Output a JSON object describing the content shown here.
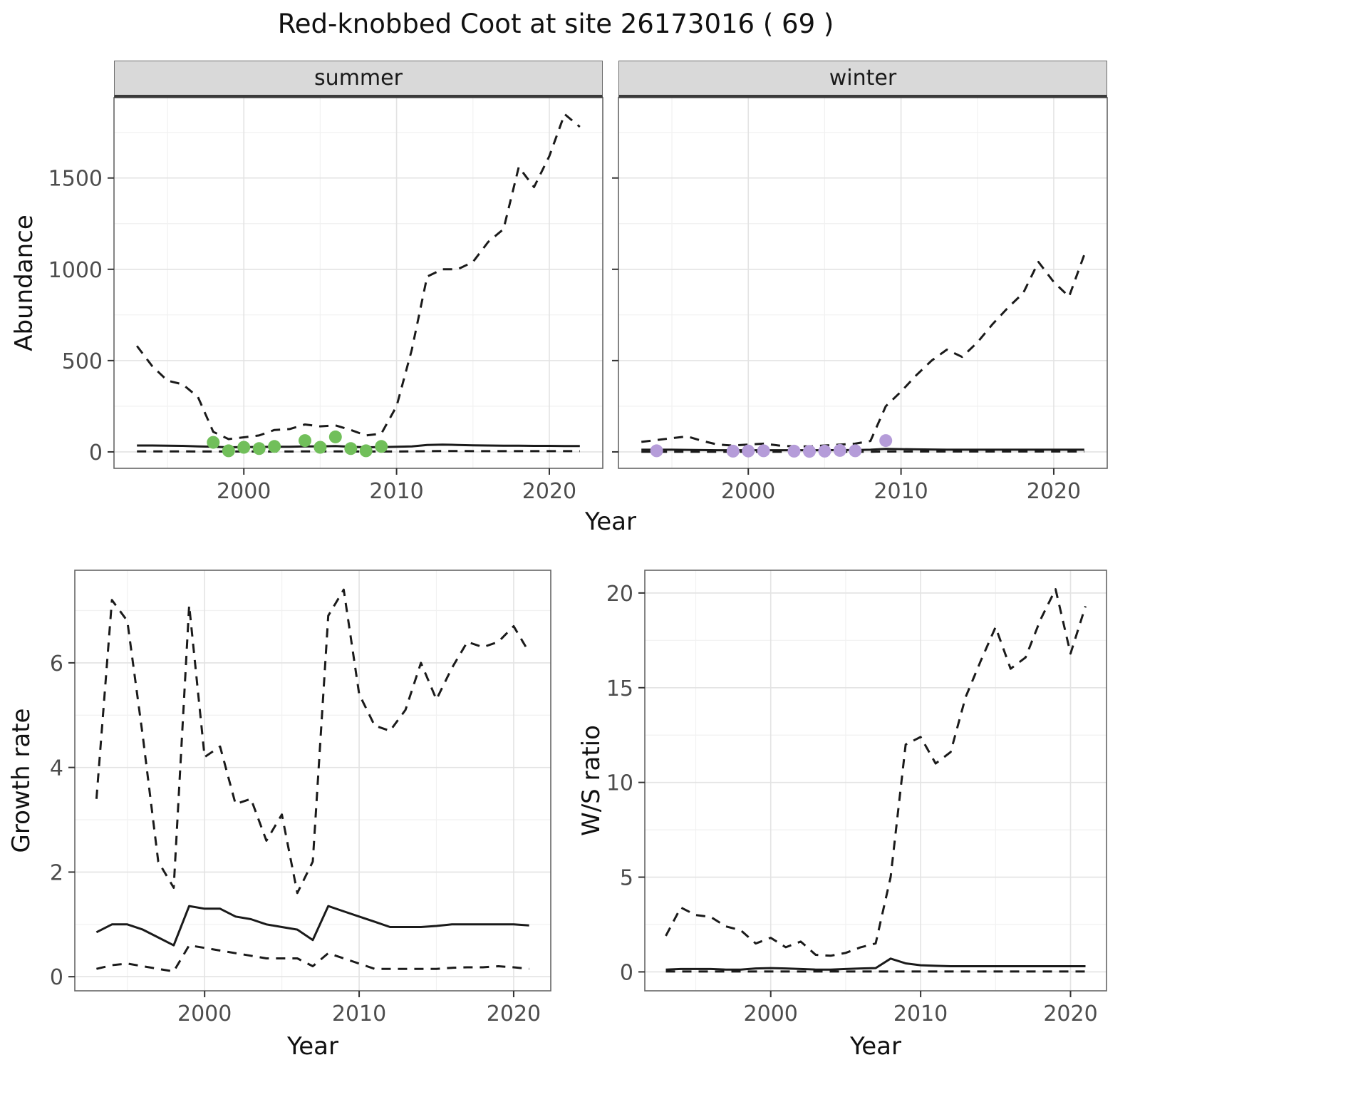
{
  "title": "Red-knobbed Coot at site 26173016 ( 69 )",
  "axes": {
    "abundance_label": "Abundance",
    "year_label": "Year",
    "growth_label": "Growth rate",
    "ws_label": "W/S ratio"
  },
  "style": {
    "line": "#1a1a1a",
    "grid_major": "#e3e3e3",
    "grid_minor": "#f1f1f1",
    "panel_border": "#666666",
    "tick_color": "#333333",
    "tick_text": "#4d4d4d",
    "strip_bg": "#d9d9d9",
    "summer_point": "#71bf5a",
    "winter_point": "#b59cd9"
  },
  "chart_data": [
    {
      "id": "abundance-summer",
      "type": "line",
      "facet_label": "summer",
      "xlabel": "Year",
      "ylabel": "Abundance",
      "xlim": [
        1991.5,
        2023.5
      ],
      "ylim": [
        -90,
        1940
      ],
      "xticks": [
        2000,
        2010,
        2020
      ],
      "xminor": [
        1995,
        2005,
        2015
      ],
      "yticks": [
        0,
        500,
        1000,
        1500
      ],
      "yminor": [
        250,
        750,
        1250,
        1750
      ],
      "x": [
        1993,
        1994,
        1995,
        1996,
        1997,
        1998,
        1999,
        2000,
        2001,
        2002,
        2003,
        2004,
        2005,
        2006,
        2007,
        2008,
        2009,
        2010,
        2011,
        2012,
        2013,
        2014,
        2015,
        2016,
        2017,
        2018,
        2019,
        2020,
        2021,
        2022
      ],
      "series": [
        {
          "name": "upper_ci",
          "style": "dashed",
          "values": [
            580,
            470,
            390,
            370,
            300,
            110,
            70,
            80,
            90,
            120,
            125,
            150,
            140,
            145,
            120,
            90,
            100,
            250,
            560,
            960,
            1000,
            1000,
            1040,
            1150,
            1220,
            1560,
            1450,
            1620,
            1850,
            1780
          ]
        },
        {
          "name": "median",
          "style": "solid",
          "values": [
            35,
            35,
            34,
            33,
            30,
            28,
            25,
            26,
            27,
            28,
            28,
            30,
            30,
            32,
            28,
            25,
            26,
            28,
            30,
            38,
            40,
            38,
            36,
            35,
            34,
            34,
            33,
            33,
            32,
            32
          ]
        },
        {
          "name": "lower_ci",
          "style": "dashed",
          "values": [
            3,
            3,
            3,
            3,
            2,
            2,
            2,
            2,
            2,
            2,
            2,
            3,
            3,
            3,
            2,
            2,
            2,
            2,
            3,
            4,
            5,
            5,
            4,
            4,
            4,
            4,
            4,
            4,
            4,
            4
          ]
        }
      ],
      "points": {
        "name": "observed_counts",
        "color": "#71bf5a",
        "x": [
          1998,
          1999,
          2000,
          2001,
          2002,
          2004,
          2005,
          2006,
          2007,
          2008,
          2009
        ],
        "y": [
          52,
          6,
          25,
          18,
          30,
          62,
          25,
          82,
          18,
          6,
          30
        ]
      }
    },
    {
      "id": "abundance-winter",
      "type": "line",
      "facet_label": "winter",
      "xlabel": "Year",
      "ylabel": "Abundance",
      "xlim": [
        1991.5,
        2023.5
      ],
      "ylim": [
        -90,
        1940
      ],
      "xticks": [
        2000,
        2010,
        2020
      ],
      "xminor": [
        1995,
        2005,
        2015
      ],
      "yticks": [
        0,
        500,
        1000,
        1500
      ],
      "yminor": [
        250,
        750,
        1250,
        1750
      ],
      "x": [
        1993,
        1994,
        1995,
        1996,
        1997,
        1998,
        1999,
        2000,
        2001,
        2002,
        2003,
        2004,
        2005,
        2006,
        2007,
        2008,
        2009,
        2010,
        2011,
        2012,
        2013,
        2014,
        2015,
        2016,
        2017,
        2018,
        2019,
        2020,
        2021,
        2022
      ],
      "series": [
        {
          "name": "upper_ci",
          "style": "dashed",
          "values": [
            55,
            65,
            75,
            85,
            60,
            40,
            35,
            40,
            45,
            35,
            30,
            30,
            35,
            40,
            45,
            60,
            250,
            330,
            420,
            500,
            560,
            520,
            600,
            700,
            790,
            870,
            1040,
            930,
            850,
            1080
          ]
        },
        {
          "name": "median",
          "style": "solid",
          "values": [
            12,
            12,
            12,
            11,
            10,
            9,
            9,
            9,
            9,
            9,
            9,
            9,
            9,
            10,
            10,
            12,
            16,
            15,
            14,
            13,
            12,
            12,
            12,
            12,
            12,
            12,
            12,
            12,
            12,
            12
          ]
        },
        {
          "name": "lower_ci",
          "style": "dashed",
          "values": [
            1,
            1,
            1,
            1,
            1,
            1,
            1,
            1,
            1,
            1,
            1,
            1,
            1,
            1,
            1,
            1,
            2,
            2,
            2,
            2,
            2,
            2,
            2,
            2,
            2,
            2,
            2,
            2,
            2,
            2
          ]
        }
      ],
      "points": {
        "name": "observed_counts",
        "color": "#b59cd9",
        "x": [
          1994,
          1999,
          2000,
          2001,
          2003,
          2004,
          2005,
          2006,
          2007,
          2009
        ],
        "y": [
          6,
          4,
          5,
          6,
          4,
          3,
          4,
          8,
          6,
          62
        ]
      }
    },
    {
      "id": "growth-rate",
      "type": "line",
      "facet_label": "",
      "xlabel": "Year",
      "ylabel": "Growth rate",
      "xlim": [
        1991.6,
        2022.4
      ],
      "ylim": [
        -0.27,
        7.77
      ],
      "xticks": [
        2000,
        2010,
        2020
      ],
      "xminor": [
        1995,
        2005,
        2015
      ],
      "yticks": [
        0,
        2,
        4,
        6
      ],
      "yminor": [
        1,
        3,
        5,
        7
      ],
      "x": [
        1993,
        1994,
        1995,
        1996,
        1997,
        1998,
        1999,
        2000,
        2001,
        2002,
        2003,
        2004,
        2005,
        2006,
        2007,
        2008,
        2009,
        2010,
        2011,
        2012,
        2013,
        2014,
        2015,
        2016,
        2017,
        2018,
        2019,
        2020,
        2021
      ],
      "series": [
        {
          "name": "upper_ci",
          "style": "dashed",
          "values": [
            3.4,
            7.2,
            6.8,
            4.6,
            2.2,
            1.7,
            7.1,
            4.2,
            4.4,
            3.3,
            3.4,
            2.6,
            3.1,
            1.6,
            2.2,
            6.9,
            7.4,
            5.4,
            4.8,
            4.7,
            5.1,
            6.0,
            5.3,
            5.9,
            6.4,
            6.3,
            6.4,
            6.7,
            6.2
          ]
        },
        {
          "name": "median",
          "style": "solid",
          "values": [
            0.85,
            1.0,
            1.0,
            0.9,
            0.75,
            0.6,
            1.35,
            1.3,
            1.3,
            1.15,
            1.1,
            1.0,
            0.95,
            0.9,
            0.7,
            1.35,
            1.25,
            1.15,
            1.05,
            0.95,
            0.95,
            0.95,
            0.97,
            1.0,
            1.0,
            1.0,
            1.0,
            1.0,
            0.98
          ]
        },
        {
          "name": "lower_ci",
          "style": "dashed",
          "values": [
            0.15,
            0.22,
            0.25,
            0.2,
            0.15,
            0.1,
            0.6,
            0.55,
            0.5,
            0.45,
            0.4,
            0.35,
            0.35,
            0.35,
            0.2,
            0.45,
            0.35,
            0.25,
            0.15,
            0.15,
            0.15,
            0.15,
            0.15,
            0.17,
            0.18,
            0.18,
            0.2,
            0.18,
            0.15
          ]
        }
      ]
    },
    {
      "id": "ws-ratio",
      "type": "line",
      "facet_label": "",
      "xlabel": "Year",
      "ylabel": "W/S ratio",
      "xlim": [
        1991.6,
        2022.4
      ],
      "ylim": [
        -1,
        21.2
      ],
      "xticks": [
        2000,
        2010,
        2020
      ],
      "xminor": [
        1995,
        2005,
        2015
      ],
      "yticks": [
        0,
        5,
        10,
        15,
        20
      ],
      "yminor": [
        2.5,
        7.5,
        12.5,
        17.5
      ],
      "x": [
        1993,
        1994,
        1995,
        1996,
        1997,
        1998,
        1999,
        2000,
        2001,
        2002,
        2003,
        2004,
        2005,
        2006,
        2007,
        2008,
        2009,
        2010,
        2011,
        2012,
        2013,
        2014,
        2015,
        2016,
        2017,
        2018,
        2019,
        2020,
        2021
      ],
      "series": [
        {
          "name": "upper_ci",
          "style": "dashed",
          "values": [
            1.9,
            3.4,
            3.0,
            2.9,
            2.4,
            2.2,
            1.5,
            1.8,
            1.3,
            1.6,
            0.9,
            0.85,
            1.0,
            1.3,
            1.5,
            5.0,
            12.0,
            12.4,
            11.0,
            11.6,
            14.5,
            16.4,
            18.2,
            16.0,
            16.6,
            18.6,
            20.2,
            16.8,
            19.3
          ]
        },
        {
          "name": "median",
          "style": "solid",
          "values": [
            0.12,
            0.15,
            0.15,
            0.15,
            0.12,
            0.12,
            0.18,
            0.2,
            0.18,
            0.15,
            0.12,
            0.12,
            0.15,
            0.18,
            0.2,
            0.7,
            0.45,
            0.35,
            0.32,
            0.3,
            0.3,
            0.3,
            0.3,
            0.3,
            0.3,
            0.3,
            0.3,
            0.3,
            0.3
          ]
        },
        {
          "name": "lower_ci",
          "style": "dashed",
          "values": [
            0.02,
            0.02,
            0.02,
            0.02,
            0.02,
            0.02,
            0.02,
            0.02,
            0.02,
            0.02,
            0.02,
            0.02,
            0.02,
            0.02,
            0.02,
            0.02,
            0.02,
            0.02,
            0.02,
            0.02,
            0.02,
            0.02,
            0.02,
            0.02,
            0.02,
            0.02,
            0.02,
            0.02,
            0.02
          ]
        }
      ]
    }
  ]
}
